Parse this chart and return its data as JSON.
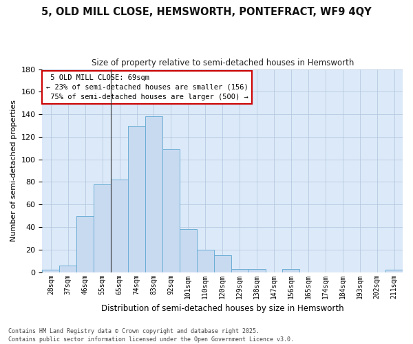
{
  "title": "5, OLD MILL CLOSE, HEMSWORTH, PONTEFRACT, WF9 4QY",
  "subtitle": "Size of property relative to semi-detached houses in Hemsworth",
  "xlabel": "Distribution of semi-detached houses by size in Hemsworth",
  "ylabel": "Number of semi-detached properties",
  "bar_color": "#c8daf0",
  "bar_edge_color": "#6baed6",
  "plot_bg_color": "#dce9f8",
  "fig_bg_color": "#ffffff",
  "grid_color": "#b0c4de",
  "bins": [
    "28sqm",
    "37sqm",
    "46sqm",
    "55sqm",
    "65sqm",
    "74sqm",
    "83sqm",
    "92sqm",
    "101sqm",
    "110sqm",
    "120sqm",
    "129sqm",
    "138sqm",
    "147sqm",
    "156sqm",
    "165sqm",
    "174sqm",
    "184sqm",
    "193sqm",
    "202sqm",
    "211sqm"
  ],
  "values": [
    2,
    6,
    50,
    78,
    82,
    130,
    138,
    109,
    38,
    20,
    15,
    3,
    3,
    0,
    3,
    0,
    0,
    0,
    0,
    0,
    2
  ],
  "ylim": [
    0,
    180
  ],
  "yticks": [
    0,
    20,
    40,
    60,
    80,
    100,
    120,
    140,
    160,
    180
  ],
  "property_label": "5 OLD MILL CLOSE: 69sqm",
  "pct_smaller": 23,
  "pct_smaller_count": 156,
  "pct_larger": 75,
  "pct_larger_count": 500,
  "annotation_box_color": "#ffffff",
  "annotation_box_edge": "#cc0000",
  "prop_vline_x": 3.5,
  "footer": "Contains HM Land Registry data © Crown copyright and database right 2025.\nContains public sector information licensed under the Open Government Licence v3.0."
}
